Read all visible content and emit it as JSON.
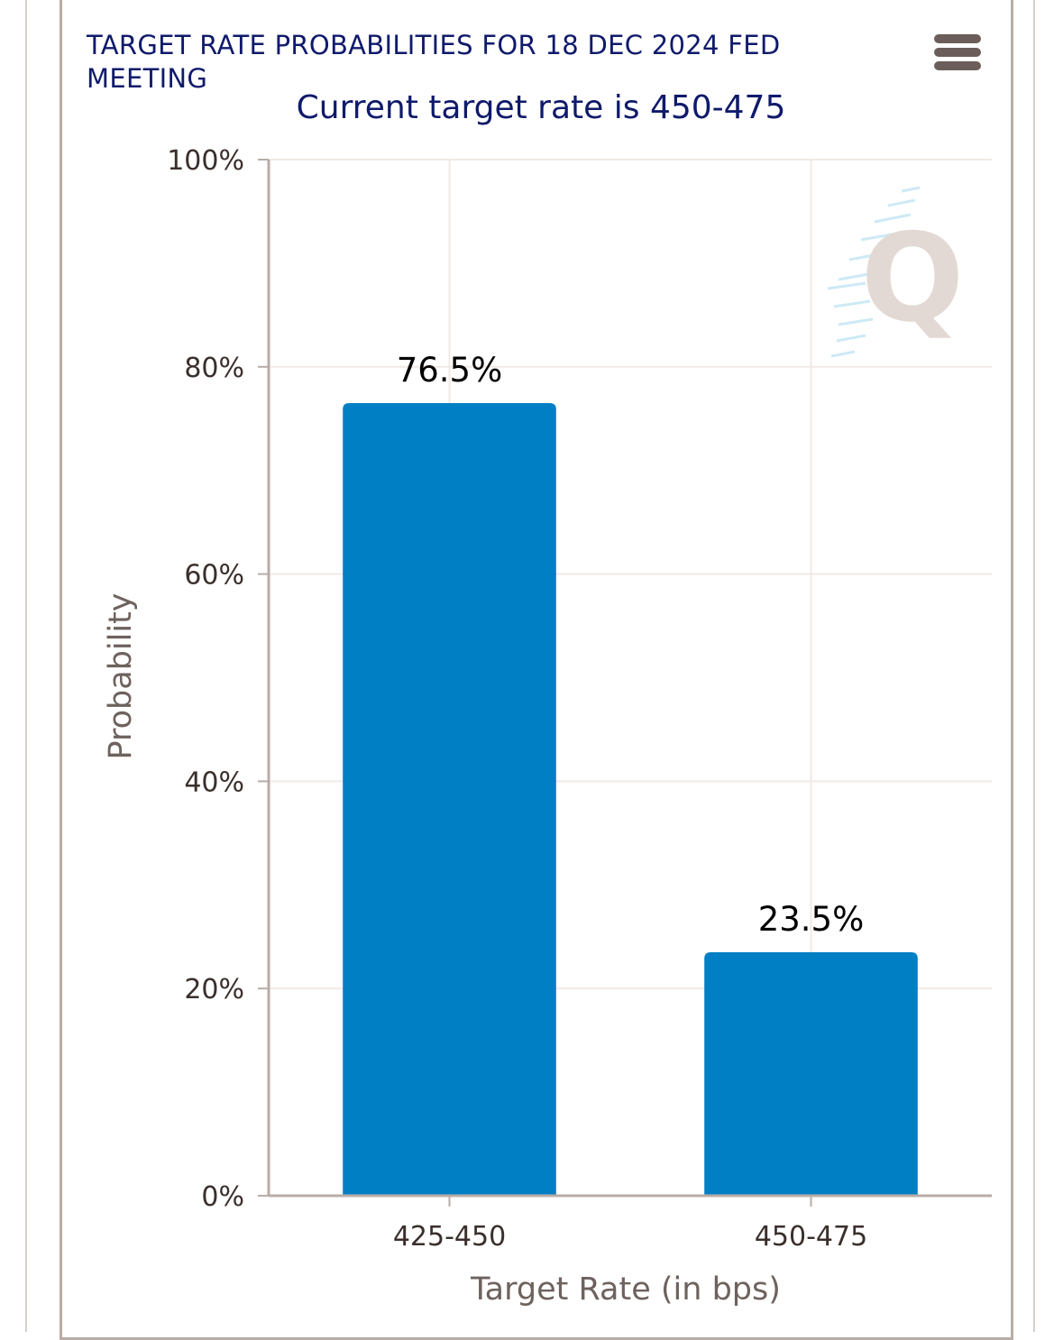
{
  "header": {
    "title": "TARGET RATE PROBABILITIES FOR 18 DEC 2024 FED MEETING",
    "subtitle": "Current target rate is 450-475"
  },
  "watermark": {
    "letter": "Q"
  },
  "icons": {
    "menu": "hamburger-menu-icon"
  },
  "colors": {
    "bar": "#007fc4",
    "title": "#0f1a6b",
    "grid": "#f1e9e5",
    "axis": "#b9aca6",
    "frame": "#b9aca6"
  },
  "chart_data": {
    "type": "bar",
    "title": "TARGET RATE PROBABILITIES FOR 18 DEC 2024 FED MEETING",
    "subtitle": "Current target rate is 450-475",
    "xlabel": "Target Rate (in bps)",
    "ylabel": "Probability",
    "categories": [
      "425-450",
      "450-475"
    ],
    "values": [
      76.5,
      23.5
    ],
    "data_labels": [
      "76.5%",
      "23.5%"
    ],
    "ylim": [
      0,
      100
    ],
    "yticks": [
      0,
      20,
      40,
      60,
      80,
      100
    ],
    "ytick_labels": [
      "0%",
      "20%",
      "40%",
      "60%",
      "80%",
      "100%"
    ],
    "grid": true,
    "legend": "none"
  }
}
